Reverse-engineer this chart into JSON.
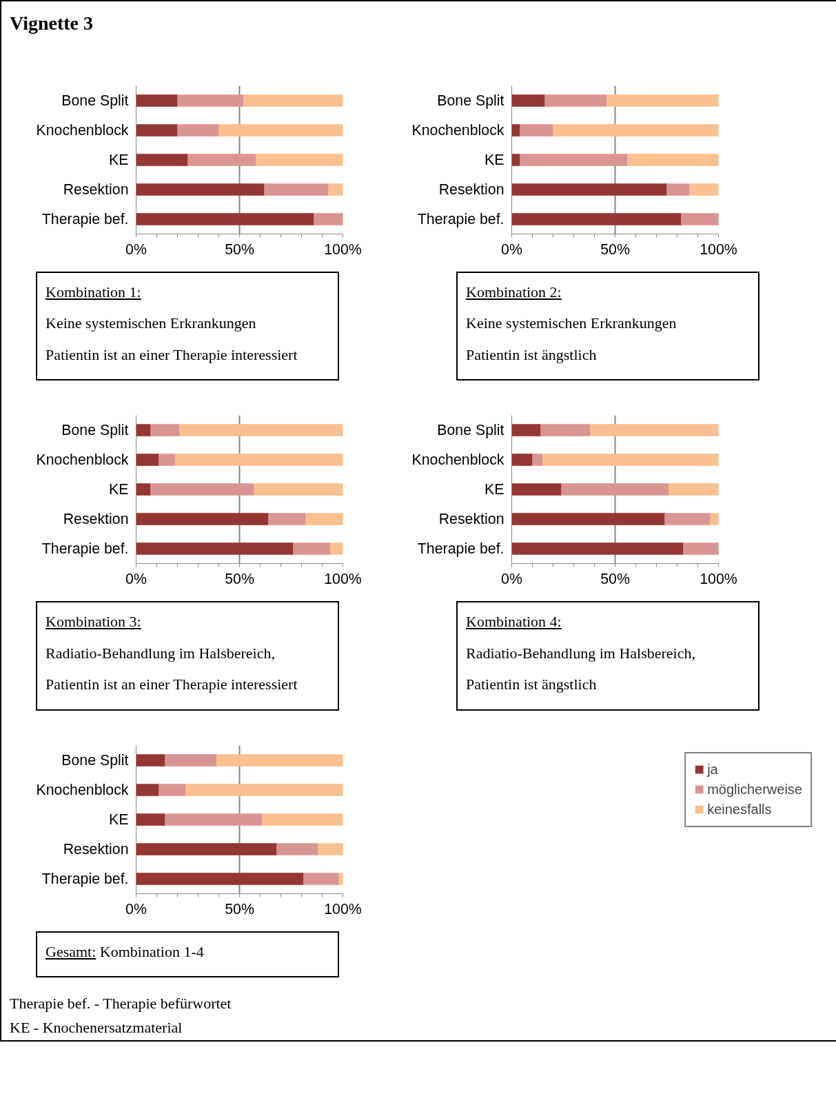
{
  "chart_data": [
    {
      "type": "bar",
      "orientation": "horizontal",
      "stacked": true,
      "title": "Vignette 3",
      "categories": [
        "Bone Split",
        "Knochenblock",
        "KE",
        "Resektion",
        "Therapie bef."
      ],
      "series": [
        {
          "color": "#943634",
          "values": [
            20,
            20,
            25,
            62,
            86
          ]
        },
        {
          "color": "#d99594",
          "values": [
            32,
            20,
            33,
            31,
            14
          ]
        },
        {
          "color": "#fac090",
          "values": [
            48,
            60,
            42,
            7,
            0
          ]
        }
      ],
      "xlim": [
        0,
        100
      ],
      "xticks": [
        {
          "value": 0,
          "label": "0%"
        },
        {
          "value": 10,
          "label": null
        },
        {
          "value": 20,
          "label": null
        },
        {
          "value": 30,
          "label": null
        },
        {
          "value": 40,
          "label": null
        },
        {
          "value": 50,
          "label": "50%"
        },
        {
          "value": 60,
          "label": null
        },
        {
          "value": 70,
          "label": null
        },
        {
          "value": 80,
          "label": null
        },
        {
          "value": 90,
          "label": null
        },
        {
          "value": 100,
          "label": "100%"
        }
      ],
      "grid": "x",
      "annotations": [
        "Kombination 1:",
        "Keine systemischen Erkrankungen",
        "Patientin ist an einer Therapie interessiert"
      ]
    },
    {
      "type": "bar",
      "orientation": "horizontal",
      "stacked": true,
      "categories": [
        "Bone Split",
        "Knochenblock",
        "KE",
        "Resektion",
        "Therapie bef."
      ],
      "series": [
        {
          "color": "#943634",
          "values": [
            16,
            4,
            4,
            75,
            82
          ]
        },
        {
          "color": "#d99594",
          "values": [
            30,
            16,
            52,
            11,
            18
          ]
        },
        {
          "color": "#fac090",
          "values": [
            54,
            80,
            44,
            14,
            0
          ]
        }
      ],
      "xlim": [
        0,
        100
      ],
      "xticks": [
        {
          "value": 0,
          "label": "0%"
        },
        {
          "value": 10,
          "label": null
        },
        {
          "value": 20,
          "label": null
        },
        {
          "value": 30,
          "label": null
        },
        {
          "value": 40,
          "label": null
        },
        {
          "value": 50,
          "label": "50%"
        },
        {
          "value": 60,
          "label": null
        },
        {
          "value": 70,
          "label": null
        },
        {
          "value": 80,
          "label": null
        },
        {
          "value": 90,
          "label": null
        },
        {
          "value": 100,
          "label": "100%"
        }
      ],
      "grid": "x",
      "annotations": [
        "Kombination 2:",
        "Keine systemischen Erkrankungen",
        "Patientin ist ängstlich"
      ]
    },
    {
      "type": "bar",
      "orientation": "horizontal",
      "stacked": true,
      "categories": [
        "Bone Split",
        "Knochenblock",
        "KE",
        "Resektion",
        "Therapie bef."
      ],
      "series": [
        {
          "color": "#943634",
          "values": [
            7,
            11,
            7,
            64,
            76
          ]
        },
        {
          "color": "#d99594",
          "values": [
            14,
            8,
            50,
            18,
            18
          ]
        },
        {
          "color": "#fac090",
          "values": [
            79,
            81,
            43,
            18,
            6
          ]
        }
      ],
      "xlim": [
        0,
        100
      ],
      "xticks": [
        {
          "value": 0,
          "label": "0%"
        },
        {
          "value": 10,
          "label": null
        },
        {
          "value": 20,
          "label": null
        },
        {
          "value": 30,
          "label": null
        },
        {
          "value": 40,
          "label": null
        },
        {
          "value": 50,
          "label": "50%"
        },
        {
          "value": 60,
          "label": null
        },
        {
          "value": 70,
          "label": null
        },
        {
          "value": 80,
          "label": null
        },
        {
          "value": 90,
          "label": null
        },
        {
          "value": 100,
          "label": "100%"
        }
      ],
      "grid": "x",
      "annotations": [
        "Kombination 3:",
        "Radiatio-Behandlung im Halsbereich,",
        "Patientin ist an einer Therapie interessiert"
      ]
    },
    {
      "type": "bar",
      "orientation": "horizontal",
      "stacked": true,
      "categories": [
        "Bone Split",
        "Knochenblock",
        "KE",
        "Resektion",
        "Therapie bef."
      ],
      "series": [
        {
          "color": "#943634",
          "values": [
            14,
            10,
            24,
            74,
            83
          ]
        },
        {
          "color": "#d99594",
          "values": [
            24,
            5,
            52,
            22,
            17
          ]
        },
        {
          "color": "#fac090",
          "values": [
            62,
            85,
            24,
            4,
            0
          ]
        }
      ],
      "xlim": [
        0,
        100
      ],
      "xticks": [
        {
          "value": 0,
          "label": "0%"
        },
        {
          "value": 10,
          "label": null
        },
        {
          "value": 20,
          "label": null
        },
        {
          "value": 30,
          "label": null
        },
        {
          "value": 40,
          "label": null
        },
        {
          "value": 50,
          "label": "50%"
        },
        {
          "value": 60,
          "label": null
        },
        {
          "value": 70,
          "label": null
        },
        {
          "value": 80,
          "label": null
        },
        {
          "value": 90,
          "label": null
        },
        {
          "value": 100,
          "label": "100%"
        }
      ],
      "grid": "x",
      "annotations": [
        "Kombination 4:",
        "Radiatio-Behandlung im Halsbereich,",
        "Patientin ist ängstlich"
      ]
    },
    {
      "type": "bar",
      "orientation": "horizontal",
      "stacked": true,
      "categories": [
        "Bone Split",
        "Knochenblock",
        "KE",
        "Resektion",
        "Therapie bef."
      ],
      "series": [
        {
          "name": "ja",
          "color": "#943634",
          "values": [
            14,
            11,
            14,
            68,
            81
          ]
        },
        {
          "name": "möglicherweise",
          "color": "#d99594",
          "values": [
            25,
            13,
            47,
            20,
            17
          ]
        },
        {
          "name": "keinesfalls",
          "color": "#fac090",
          "values": [
            61,
            76,
            39,
            12,
            2
          ]
        }
      ],
      "xlim": [
        0,
        100
      ],
      "xticks": [
        {
          "value": 0,
          "label": "0%"
        },
        {
          "value": 10,
          "label": null
        },
        {
          "value": 20,
          "label": null
        },
        {
          "value": 30,
          "label": null
        },
        {
          "value": 40,
          "label": null
        },
        {
          "value": 50,
          "label": "50%"
        },
        {
          "value": 60,
          "label": null
        },
        {
          "value": 70,
          "label": null
        },
        {
          "value": 80,
          "label": null
        },
        {
          "value": 90,
          "label": null
        },
        {
          "value": 100,
          "label": "100%"
        }
      ],
      "grid": "x",
      "legend": "right",
      "annotations": [
        "Gesamt: Kombination 1-4",
        "Therapie bef. - Therapie befürwortet",
        "KE - Knochenersatzmaterial"
      ]
    }
  ]
}
